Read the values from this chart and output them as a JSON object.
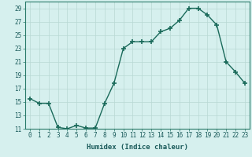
{
  "x": [
    0,
    1,
    2,
    3,
    4,
    5,
    6,
    7,
    8,
    9,
    10,
    11,
    12,
    13,
    14,
    15,
    16,
    17,
    18,
    19,
    20,
    21,
    22,
    23
  ],
  "y": [
    15.5,
    14.8,
    14.8,
    11.2,
    11.0,
    11.5,
    11.1,
    11.1,
    14.8,
    17.8,
    23.0,
    24.0,
    24.0,
    24.0,
    25.5,
    26.0,
    27.2,
    29.0,
    29.0,
    28.0,
    26.5,
    21.0,
    19.5,
    17.8
  ],
  "line_color": "#1a6a5a",
  "marker": "+",
  "marker_size": 4.0,
  "bg_color": "#d6f0ee",
  "grid_color": "#b8d8d4",
  "xlabel": "Humidex (Indice chaleur)",
  "ylim": [
    11,
    30
  ],
  "xlim": [
    -0.5,
    23.5
  ],
  "yticks": [
    11,
    13,
    15,
    17,
    19,
    21,
    23,
    25,
    27,
    29
  ],
  "xticks": [
    0,
    1,
    2,
    3,
    4,
    5,
    6,
    7,
    8,
    9,
    10,
    11,
    12,
    13,
    14,
    15,
    16,
    17,
    18,
    19,
    20,
    21,
    22,
    23
  ],
  "xlabel_fontsize": 6.5,
  "tick_fontsize": 5.5,
  "line_width": 1.0,
  "spine_color": "#2a7a6a",
  "marker_linewidth": 1.2
}
